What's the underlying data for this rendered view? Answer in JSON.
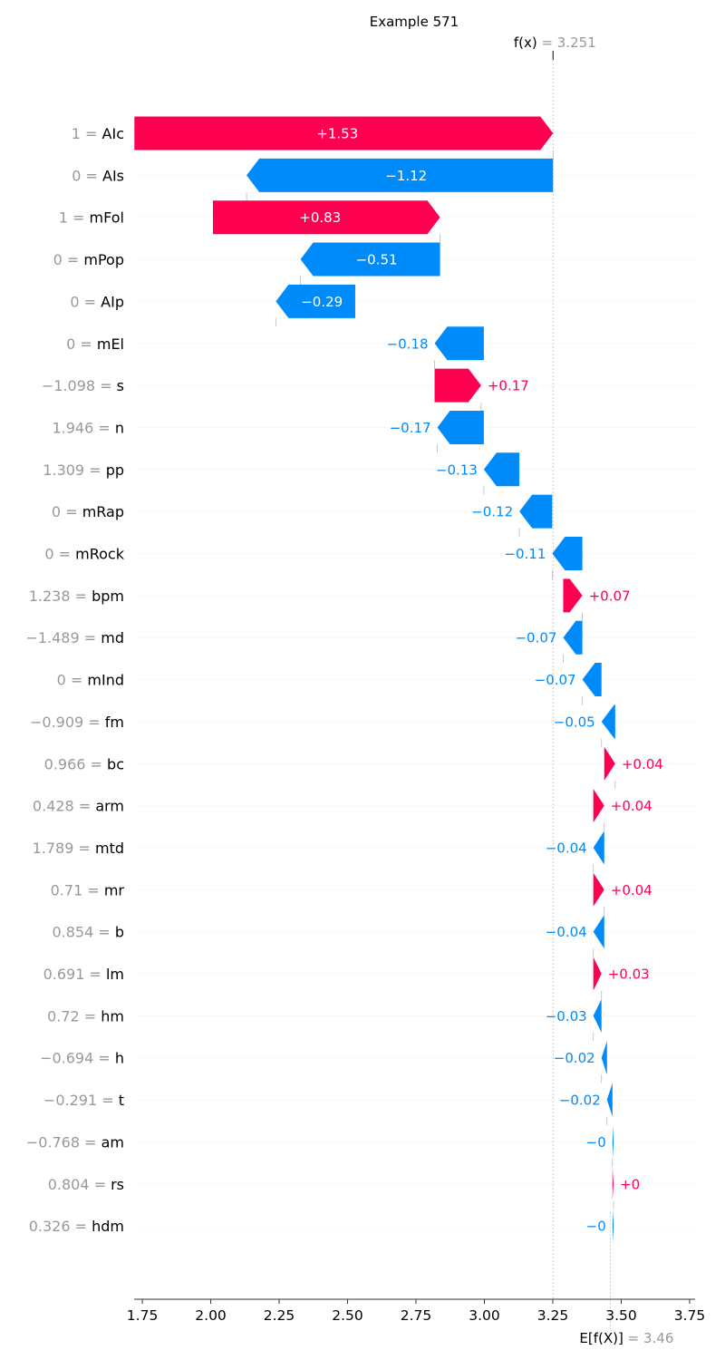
{
  "chart_data": {
    "type": "waterfall",
    "title": "Example 571",
    "fx_label": "f(x)",
    "fx_value": "3.251",
    "efx_label": "E[f(X)]",
    "efx_value": "3.46",
    "base_value": 3.46,
    "final_value": 3.251,
    "xlim": [
      1.72,
      3.77
    ],
    "x_ticks": [
      "1.75",
      "2.00",
      "2.25",
      "2.50",
      "2.75",
      "3.00",
      "3.25",
      "3.50",
      "3.75"
    ],
    "x_tick_values": [
      1.75,
      2.0,
      2.25,
      2.5,
      2.75,
      3.0,
      3.25,
      3.5,
      3.75
    ],
    "colors": {
      "positive": "#ff0051",
      "negative": "#008bfb"
    },
    "features": [
      {
        "value": "1",
        "name": "AIc",
        "shap": 1.53,
        "label": "+1.53",
        "start": 1.721
      },
      {
        "value": "0",
        "name": "AIs",
        "shap": -1.12,
        "label": "−1.12",
        "start": 3.251
      },
      {
        "value": "1",
        "name": "mFol",
        "shap": 0.83,
        "label": "+0.83",
        "start": 2.008
      },
      {
        "value": "0",
        "name": "mPop",
        "shap": -0.51,
        "label": "−0.51",
        "start": 2.838
      },
      {
        "value": "0",
        "name": "AIp",
        "shap": -0.29,
        "label": "−0.29",
        "start": 2.528
      },
      {
        "value": "0",
        "name": "mEl",
        "shap": -0.18,
        "label": "−0.18",
        "start": 2.998
      },
      {
        "value": "−1.098",
        "name": "s",
        "shap": 0.17,
        "label": "+0.17",
        "start": 2.818
      },
      {
        "value": "1.946",
        "name": "n",
        "shap": -0.17,
        "label": "−0.17",
        "start": 2.998
      },
      {
        "value": "1.309",
        "name": "pp",
        "shap": -0.13,
        "label": "−0.13",
        "start": 3.128
      },
      {
        "value": "0",
        "name": "mRap",
        "shap": -0.12,
        "label": "−0.12",
        "start": 3.248
      },
      {
        "value": "0",
        "name": "mRock",
        "shap": -0.11,
        "label": "−0.11",
        "start": 3.358
      },
      {
        "value": "1.238",
        "name": "bpm",
        "shap": 0.07,
        "label": "+0.07",
        "start": 3.288
      },
      {
        "value": "−1.489",
        "name": "md",
        "shap": -0.07,
        "label": "−0.07",
        "start": 3.358
      },
      {
        "value": "0",
        "name": "mInd",
        "shap": -0.07,
        "label": "−0.07",
        "start": 3.428
      },
      {
        "value": "−0.909",
        "name": "fm",
        "shap": -0.05,
        "label": "−0.05",
        "start": 3.478
      },
      {
        "value": "0.966",
        "name": "bc",
        "shap": 0.04,
        "label": "+0.04",
        "start": 3.438
      },
      {
        "value": "0.428",
        "name": "arm",
        "shap": 0.04,
        "label": "+0.04",
        "start": 3.398
      },
      {
        "value": "1.789",
        "name": "mtd",
        "shap": -0.04,
        "label": "−0.04",
        "start": 3.438
      },
      {
        "value": "0.71",
        "name": "mr",
        "shap": 0.04,
        "label": "+0.04",
        "start": 3.398
      },
      {
        "value": "0.854",
        "name": "b",
        "shap": -0.04,
        "label": "−0.04",
        "start": 3.438
      },
      {
        "value": "0.691",
        "name": "lm",
        "shap": 0.03,
        "label": "+0.03",
        "start": 3.398
      },
      {
        "value": "0.72",
        "name": "hm",
        "shap": -0.03,
        "label": "−0.03",
        "start": 3.428
      },
      {
        "value": "−0.694",
        "name": "h",
        "shap": -0.02,
        "label": "−0.02",
        "start": 3.448
      },
      {
        "value": "−0.291",
        "name": "t",
        "shap": -0.02,
        "label": "−0.02",
        "start": 3.468
      },
      {
        "value": "−0.768",
        "name": "am",
        "shap": -0.004,
        "label": "−0",
        "start": 3.472
      },
      {
        "value": "0.804",
        "name": "rs",
        "shap": 0.004,
        "label": "+0",
        "start": 3.468
      },
      {
        "value": "0.326",
        "name": "hdm",
        "shap": -0.004,
        "label": "−0",
        "start": 3.472
      }
    ]
  }
}
